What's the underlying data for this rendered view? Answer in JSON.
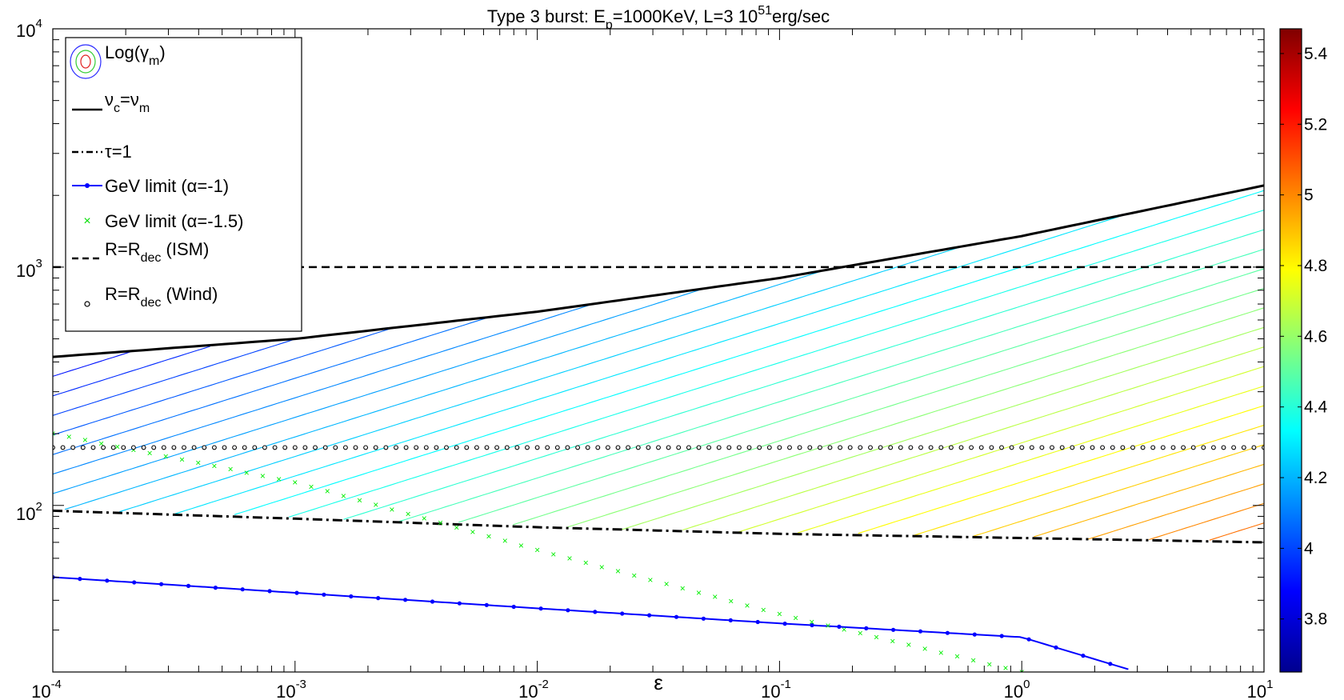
{
  "chart_data": {
    "type": "line",
    "title": {
      "pre": "Type 3 burst: E",
      "sub": "p",
      "mid": "=1000KeV, L=3 10",
      "sup": "51",
      "post": "erg/sec"
    },
    "xlabel": "ε",
    "ylabel": "",
    "x_scale": "log",
    "y_scale": "log",
    "xlim": [
      0.0001,
      10
    ],
    "ylim": [
      20,
      10000
    ],
    "x_ticks": [
      {
        "base": "10",
        "exp": "-4"
      },
      {
        "base": "10",
        "exp": "-3"
      },
      {
        "base": "10",
        "exp": "-2"
      },
      {
        "base": "10",
        "exp": "-1"
      },
      {
        "base": "10",
        "exp": "0"
      },
      {
        "base": "10",
        "exp": "1"
      }
    ],
    "y_ticks": [
      {
        "base": "10",
        "exp": "2"
      },
      {
        "base": "10",
        "exp": "3"
      },
      {
        "base": "10",
        "exp": "4"
      }
    ],
    "legend_position": "top-left",
    "legend": [
      {
        "pre": "Log(γ",
        "sub": "m",
        "post": ")"
      },
      {
        "pre": "ν",
        "sub": "c",
        "mid": "=ν",
        "sub2": "m"
      },
      {
        "pre": "τ=1"
      },
      {
        "pre": "GeV limit (α=-1)"
      },
      {
        "pre": "GeV limit (α=-1.5)"
      },
      {
        "pre": "R=R",
        "sub": "dec",
        "post": " (ISM)"
      },
      {
        "pre": "R=R",
        "sub": "dec",
        "post": " (Wind)"
      }
    ],
    "series": [
      {
        "key": "nu_c_eq_nu_m",
        "color": "#000000",
        "style": "solid",
        "x": [
          0.0001,
          0.001,
          0.01,
          0.1,
          1,
          10
        ],
        "y": [
          420,
          500,
          650,
          900,
          1350,
          2200
        ]
      },
      {
        "key": "tau_1",
        "color": "#000000",
        "style": "dash-dot",
        "x": [
          0.0001,
          0.001,
          0.01,
          0.1,
          1,
          10
        ],
        "y": [
          95,
          88,
          81,
          76,
          73,
          70
        ]
      },
      {
        "key": "gev_alpha_1",
        "color": "#0000ff",
        "style": "line-with-dots",
        "x": [
          0.0001,
          0.001,
          0.01,
          0.1,
          1,
          3
        ],
        "y": [
          50,
          43,
          37,
          32,
          28,
          20
        ]
      },
      {
        "key": "gev_alpha_1_5",
        "color": "#00ff00",
        "style": "x-markers",
        "x": [
          0.0001,
          0.001,
          0.01,
          0.1,
          1
        ],
        "y": [
          200,
          125,
          65,
          35,
          20
        ]
      },
      {
        "key": "r_dec_ism",
        "color": "#000000",
        "style": "dashed",
        "x": [
          0.0001,
          10
        ],
        "y": [
          1000,
          1000
        ]
      },
      {
        "key": "r_dec_wind",
        "color": "#000000",
        "style": "open-circles",
        "x": [
          0.0001,
          10
        ],
        "y": [
          175,
          175
        ]
      }
    ],
    "contours": {
      "quantity": "Log(γm)",
      "min": 3.65,
      "max": 5.45,
      "description_levels": 40
    },
    "colorbar": {
      "ticks": [
        "3.8",
        "4",
        "4.2",
        "4.4",
        "4.6",
        "4.8",
        "5",
        "5.2",
        "5.4"
      ],
      "range": [
        3.65,
        5.47
      ]
    }
  }
}
